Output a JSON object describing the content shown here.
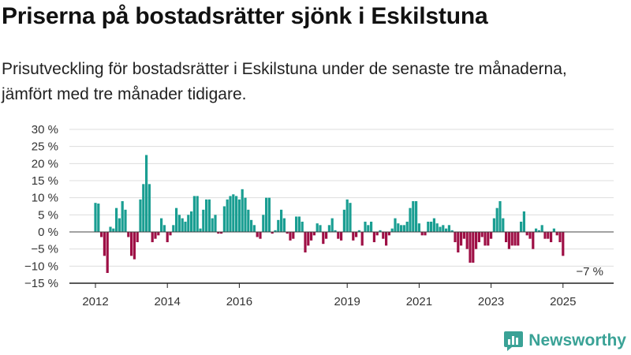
{
  "header": {
    "title": "Priserna på bostadsrätter sjönk i Eskilstuna",
    "subtitle": "Prisutveckling för bostadsrätter i Eskilstuna under de senaste tre månaderna, jämfört med tre månader tidigare."
  },
  "brand": {
    "name": "Newsworthy",
    "icon": "newsworthy-logo-icon"
  },
  "colors": {
    "positive": "#1a9e92",
    "negative": "#9e0f45",
    "grid": "#dddddd",
    "axis": "#222222"
  },
  "chart_data": {
    "type": "bar",
    "title": "",
    "xlabel": "",
    "ylabel": "",
    "ylim": [
      -15,
      30
    ],
    "yticks": [
      30,
      25,
      20,
      15,
      10,
      5,
      0,
      -5,
      -10,
      -15
    ],
    "ytick_labels": [
      "30 %",
      "25 %",
      "20 %",
      "15 %",
      "10 %",
      "5 %",
      "0 %",
      "−5 %",
      "−10 %",
      "−15 %"
    ],
    "xticks": [
      {
        "label": "2012",
        "index": 0
      },
      {
        "label": "2014",
        "index": 24
      },
      {
        "label": "2016",
        "index": 48
      },
      {
        "label": "2019",
        "index": 84
      },
      {
        "label": "2021",
        "index": 108
      },
      {
        "label": "2023",
        "index": 132
      },
      {
        "label": "2025",
        "index": 156
      }
    ],
    "grid": true,
    "end_label": "−7 %",
    "values": [
      8.5,
      8.3,
      -1.5,
      -7.0,
      -12.0,
      1.5,
      1.0,
      7.0,
      4.0,
      9.0,
      6.5,
      -1.5,
      -7.0,
      -8.0,
      -3.0,
      9.5,
      14.0,
      22.5,
      14.0,
      -3.0,
      -2.0,
      -1.0,
      4.0,
      2.0,
      -3.0,
      -1.0,
      2.0,
      7.0,
      5.0,
      4.0,
      3.0,
      5.0,
      6.0,
      10.5,
      10.5,
      1.0,
      6.5,
      9.5,
      9.5,
      4.0,
      5.0,
      -0.5,
      -0.5,
      7.5,
      9.5,
      10.5,
      11.0,
      10.5,
      9.5,
      12.5,
      10.0,
      6.5,
      3.5,
      2.0,
      -1.5,
      -2.0,
      5.0,
      10.0,
      10.0,
      -0.5,
      0.5,
      3.5,
      6.5,
      4.0,
      -0.5,
      -2.5,
      -2.0,
      4.5,
      4.5,
      3.0,
      -6.0,
      -4.0,
      -2.5,
      -1.0,
      2.5,
      2.0,
      -3.5,
      -2.0,
      2.0,
      4.0,
      0.5,
      -2.0,
      -2.5,
      6.5,
      9.5,
      8.5,
      -2.5,
      -1.5,
      0.5,
      -4.0,
      3.0,
      2.0,
      3.0,
      -3.0,
      -1.0,
      0.5,
      -2.0,
      -4.0,
      -1.0,
      1.0,
      4.0,
      2.5,
      2.0,
      2.0,
      3.0,
      7.0,
      9.0,
      9.0,
      2.5,
      -1.0,
      -1.0,
      3.0,
      3.0,
      4.0,
      2.5,
      1.5,
      2.0,
      1.0,
      2.0,
      0.5,
      -3.0,
      -6.0,
      -4.0,
      -2.0,
      -5.0,
      -9.0,
      -9.0,
      -5.0,
      -3.0,
      -1.5,
      -4.0,
      -4.0,
      -2.0,
      4.0,
      7.0,
      9.0,
      4.0,
      -3.0,
      -5.0,
      -4.0,
      -4.0,
      -4.0,
      3.0,
      6.0,
      -1.0,
      -2.0,
      -5.0,
      1.0,
      0.5,
      2.0,
      -2.0,
      -2.0,
      -3.0,
      1.0,
      -1.0,
      -3.0,
      -7.0
    ]
  }
}
